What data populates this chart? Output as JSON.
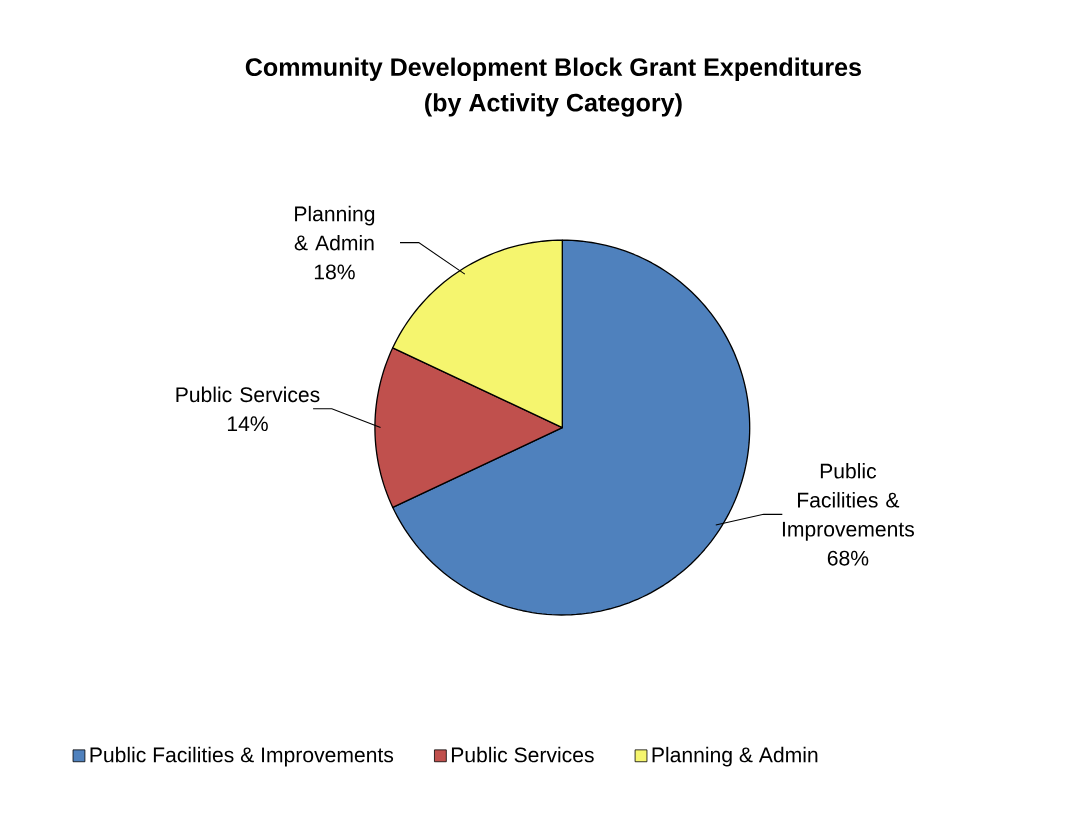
{
  "chart_data": {
    "type": "pie",
    "title": "Community Development Block Grant Expenditures",
    "subtitle": "(by Activity Category)",
    "categories": [
      "Public Facilities & Improvements",
      "Public Services",
      "Planning & Admin"
    ],
    "values": [
      68,
      14,
      18
    ],
    "value_labels": [
      "68%",
      "14%",
      "18%"
    ],
    "colors": [
      "#4f81bd",
      "#c0504d",
      "#f5f56e"
    ],
    "legend": "bottom"
  }
}
